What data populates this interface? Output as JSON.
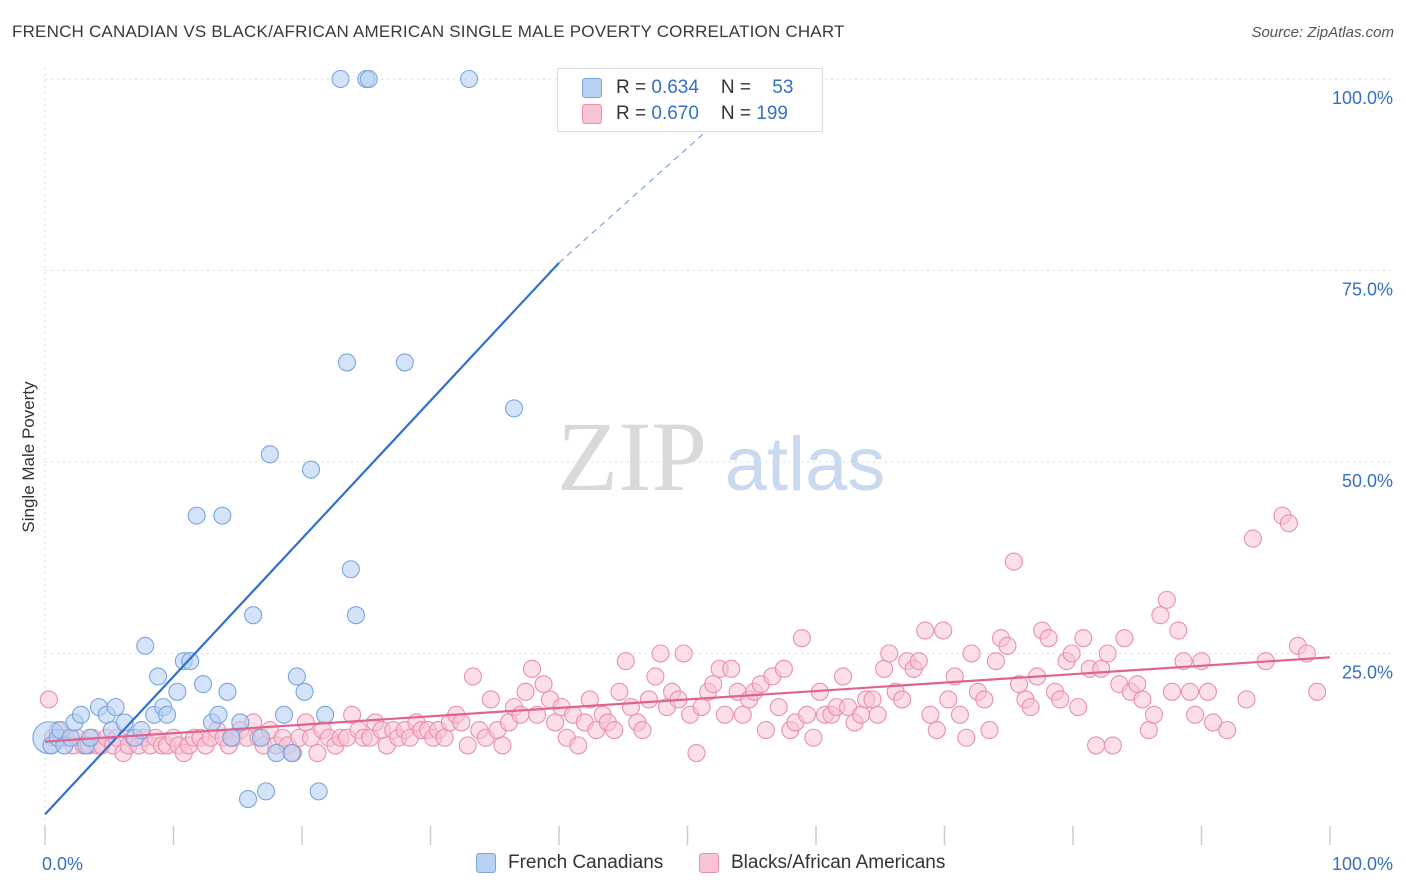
{
  "title": "FRENCH CANADIAN VS BLACK/AFRICAN AMERICAN SINGLE MALE POVERTY CORRELATION CHART",
  "source": "Source: ZipAtlas.com",
  "watermark": {
    "zip": "ZIP",
    "atlas": "atlas"
  },
  "colors": {
    "blue_fill": "#b8d0f2",
    "blue_stroke": "#7aa5de",
    "blue_line": "#2f6fd0",
    "pink_fill": "#f8c3d4",
    "pink_stroke": "#ea8fb0",
    "pink_line": "#e0638f",
    "tick_label": "#3570c4",
    "grid": "#d8d8d8"
  },
  "legend": {
    "rows": [
      {
        "r_label": "R = ",
        "r_value": "0.634",
        "n_label": "N = ",
        "n_value": "53"
      },
      {
        "r_label": "R = ",
        "r_value": "0.670",
        "n_label": "N = ",
        "n_value": "199"
      }
    ]
  },
  "chart_data": {
    "type": "scatter",
    "ylabel": "Single Male Poverty",
    "xlim": [
      0,
      100
    ],
    "ylim": [
      0,
      100
    ],
    "x_tick_labels": [
      "0.0%",
      "100.0%"
    ],
    "y_ticks": [
      25,
      50,
      75,
      100
    ],
    "y_tick_labels": [
      "25.0%",
      "50.0%",
      "75.0%",
      "100.0%"
    ],
    "grid": "horizontal dashed",
    "series": [
      {
        "name": "French Canadians",
        "r": 0.634,
        "n": 53,
        "trend": {
          "x": [
            0,
            40
          ],
          "y": [
            4,
            76
          ]
        },
        "trend_dashed": {
          "x": [
            40,
            56
          ],
          "y": [
            76,
            100
          ]
        },
        "points": [
          [
            0.3,
            14
          ],
          [
            0.5,
            13
          ],
          [
            1.0,
            14
          ],
          [
            1.2,
            15
          ],
          [
            1.5,
            13
          ],
          [
            2.0,
            14
          ],
          [
            2.3,
            16
          ],
          [
            2.8,
            17
          ],
          [
            3.2,
            13
          ],
          [
            3.5,
            14
          ],
          [
            4.2,
            18
          ],
          [
            4.8,
            17
          ],
          [
            5.2,
            15
          ],
          [
            5.5,
            18
          ],
          [
            6.2,
            16
          ],
          [
            7.0,
            14
          ],
          [
            7.5,
            15
          ],
          [
            7.8,
            26
          ],
          [
            8.5,
            17
          ],
          [
            8.8,
            22
          ],
          [
            9.2,
            18
          ],
          [
            9.5,
            17
          ],
          [
            10.3,
            20
          ],
          [
            10.8,
            24
          ],
          [
            11.3,
            24
          ],
          [
            11.8,
            43
          ],
          [
            12.3,
            21
          ],
          [
            13.0,
            16
          ],
          [
            13.5,
            17
          ],
          [
            13.8,
            43
          ],
          [
            14.2,
            20
          ],
          [
            14.5,
            14
          ],
          [
            15.2,
            16
          ],
          [
            15.8,
            6
          ],
          [
            16.2,
            30
          ],
          [
            16.8,
            14
          ],
          [
            17.2,
            7
          ],
          [
            17.5,
            51
          ],
          [
            18.0,
            12
          ],
          [
            18.6,
            17
          ],
          [
            19.2,
            12
          ],
          [
            19.6,
            22
          ],
          [
            20.2,
            20
          ],
          [
            20.7,
            49
          ],
          [
            21.3,
            7
          ],
          [
            21.8,
            17
          ],
          [
            23.0,
            100
          ],
          [
            23.5,
            63
          ],
          [
            23.8,
            36
          ],
          [
            24.2,
            30
          ],
          [
            25.0,
            100
          ],
          [
            25.2,
            100
          ],
          [
            28.0,
            63
          ],
          [
            33.0,
            100
          ],
          [
            36.5,
            57
          ]
        ]
      },
      {
        "name": "Blacks/African Americans",
        "r": 0.67,
        "n": 199,
        "trend": {
          "x": [
            0,
            100
          ],
          "y": [
            13.5,
            24.5
          ]
        },
        "points": [
          [
            0.3,
            19
          ],
          [
            0.6,
            14
          ],
          [
            1.0,
            15
          ],
          [
            1.3,
            14
          ],
          [
            1.6,
            14
          ],
          [
            2.2,
            13
          ],
          [
            2.5,
            14
          ],
          [
            3.0,
            13
          ],
          [
            3.4,
            13
          ],
          [
            3.7,
            14
          ],
          [
            4.1,
            13
          ],
          [
            4.4,
            13
          ],
          [
            4.8,
            14
          ],
          [
            5.3,
            13
          ],
          [
            5.6,
            14
          ],
          [
            6.1,
            12
          ],
          [
            6.5,
            13
          ],
          [
            6.9,
            14
          ],
          [
            7.3,
            13
          ],
          [
            7.7,
            14
          ],
          [
            8.2,
            13
          ],
          [
            8.6,
            14
          ],
          [
            9.1,
            13
          ],
          [
            9.5,
            13
          ],
          [
            10.0,
            14
          ],
          [
            10.4,
            13
          ],
          [
            10.8,
            12
          ],
          [
            11.2,
            13
          ],
          [
            11.6,
            14
          ],
          [
            12.1,
            14
          ],
          [
            12.5,
            13
          ],
          [
            12.9,
            14
          ],
          [
            13.4,
            15
          ],
          [
            13.9,
            14
          ],
          [
            14.3,
            13
          ],
          [
            14.7,
            14
          ],
          [
            15.2,
            15
          ],
          [
            15.7,
            14
          ],
          [
            16.2,
            16
          ],
          [
            16.6,
            14
          ],
          [
            17.0,
            13
          ],
          [
            17.5,
            15
          ],
          [
            18.0,
            13
          ],
          [
            18.5,
            14
          ],
          [
            18.9,
            13
          ],
          [
            19.3,
            12
          ],
          [
            19.8,
            14
          ],
          [
            20.3,
            16
          ],
          [
            20.7,
            14
          ],
          [
            21.2,
            12
          ],
          [
            21.6,
            15
          ],
          [
            22.1,
            14
          ],
          [
            22.6,
            13
          ],
          [
            23.0,
            14
          ],
          [
            23.5,
            14
          ],
          [
            23.9,
            17
          ],
          [
            24.4,
            15
          ],
          [
            24.8,
            14
          ],
          [
            25.3,
            14
          ],
          [
            25.7,
            16
          ],
          [
            26.2,
            15
          ],
          [
            26.6,
            13
          ],
          [
            27.1,
            15
          ],
          [
            27.5,
            14
          ],
          [
            28.0,
            15
          ],
          [
            28.4,
            14
          ],
          [
            28.9,
            16
          ],
          [
            29.3,
            15
          ],
          [
            29.8,
            15
          ],
          [
            30.2,
            14
          ],
          [
            30.6,
            15
          ],
          [
            31.1,
            14
          ],
          [
            31.5,
            16
          ],
          [
            32.0,
            17
          ],
          [
            32.4,
            16
          ],
          [
            32.9,
            13
          ],
          [
            33.3,
            22
          ],
          [
            33.8,
            15
          ],
          [
            34.3,
            14
          ],
          [
            34.7,
            19
          ],
          [
            35.2,
            15
          ],
          [
            35.6,
            13
          ],
          [
            36.1,
            16
          ],
          [
            36.5,
            18
          ],
          [
            37.0,
            17
          ],
          [
            37.4,
            20
          ],
          [
            37.9,
            23
          ],
          [
            38.3,
            17
          ],
          [
            38.8,
            21
          ],
          [
            39.3,
            19
          ],
          [
            39.7,
            16
          ],
          [
            40.2,
            18
          ],
          [
            40.6,
            14
          ],
          [
            41.1,
            17
          ],
          [
            41.5,
            13
          ],
          [
            42.0,
            16
          ],
          [
            42.4,
            19
          ],
          [
            42.9,
            15
          ],
          [
            43.4,
            17
          ],
          [
            43.8,
            16
          ],
          [
            44.3,
            15
          ],
          [
            44.7,
            20
          ],
          [
            45.2,
            24
          ],
          [
            45.6,
            18
          ],
          [
            46.1,
            16
          ],
          [
            46.5,
            15
          ],
          [
            47.0,
            19
          ],
          [
            47.5,
            22
          ],
          [
            47.9,
            25
          ],
          [
            48.4,
            18
          ],
          [
            48.8,
            20
          ],
          [
            49.3,
            19
          ],
          [
            49.7,
            25
          ],
          [
            50.2,
            17
          ],
          [
            50.7,
            12
          ],
          [
            51.1,
            18
          ],
          [
            51.6,
            20
          ],
          [
            52.0,
            21
          ],
          [
            52.5,
            23
          ],
          [
            52.9,
            17
          ],
          [
            53.4,
            23
          ],
          [
            53.9,
            20
          ],
          [
            54.3,
            17
          ],
          [
            54.8,
            19
          ],
          [
            55.2,
            20
          ],
          [
            55.7,
            21
          ],
          [
            56.1,
            15
          ],
          [
            56.6,
            22
          ],
          [
            57.1,
            18
          ],
          [
            57.5,
            23
          ],
          [
            58.0,
            15
          ],
          [
            58.4,
            16
          ],
          [
            58.9,
            27
          ],
          [
            59.3,
            17
          ],
          [
            59.8,
            14
          ],
          [
            60.3,
            20
          ],
          [
            60.7,
            17
          ],
          [
            61.2,
            17
          ],
          [
            61.6,
            18
          ],
          [
            62.1,
            22
          ],
          [
            62.5,
            18
          ],
          [
            63.0,
            16
          ],
          [
            63.5,
            17
          ],
          [
            63.9,
            19
          ],
          [
            64.4,
            19
          ],
          [
            64.8,
            17
          ],
          [
            65.3,
            23
          ],
          [
            65.7,
            25
          ],
          [
            66.2,
            20
          ],
          [
            66.7,
            19
          ],
          [
            67.1,
            24
          ],
          [
            67.6,
            23
          ],
          [
            68.0,
            24
          ],
          [
            68.5,
            28
          ],
          [
            68.9,
            17
          ],
          [
            69.4,
            15
          ],
          [
            69.9,
            28
          ],
          [
            70.3,
            19
          ],
          [
            70.8,
            22
          ],
          [
            71.2,
            17
          ],
          [
            71.7,
            14
          ],
          [
            72.1,
            25
          ],
          [
            72.6,
            20
          ],
          [
            73.1,
            19
          ],
          [
            73.5,
            15
          ],
          [
            74.0,
            24
          ],
          [
            74.4,
            27
          ],
          [
            74.9,
            26
          ],
          [
            75.4,
            37
          ],
          [
            75.8,
            21
          ],
          [
            76.3,
            19
          ],
          [
            76.7,
            18
          ],
          [
            77.2,
            22
          ],
          [
            77.6,
            28
          ],
          [
            78.1,
            27
          ],
          [
            78.6,
            20
          ],
          [
            79.0,
            19
          ],
          [
            79.5,
            24
          ],
          [
            79.9,
            25
          ],
          [
            80.4,
            18
          ],
          [
            80.8,
            27
          ],
          [
            81.3,
            23
          ],
          [
            81.8,
            13
          ],
          [
            82.2,
            23
          ],
          [
            82.7,
            25
          ],
          [
            83.1,
            13
          ],
          [
            83.6,
            21
          ],
          [
            84.0,
            27
          ],
          [
            84.5,
            20
          ],
          [
            85.0,
            21
          ],
          [
            85.4,
            19
          ],
          [
            85.9,
            15
          ],
          [
            86.3,
            17
          ],
          [
            86.8,
            30
          ],
          [
            87.3,
            32
          ],
          [
            87.7,
            20
          ],
          [
            88.2,
            28
          ],
          [
            88.6,
            24
          ],
          [
            89.1,
            20
          ],
          [
            89.5,
            17
          ],
          [
            90.0,
            24
          ],
          [
            90.5,
            20
          ],
          [
            90.9,
            16
          ],
          [
            92.0,
            15
          ],
          [
            93.5,
            19
          ],
          [
            94.0,
            40
          ],
          [
            95.0,
            24
          ],
          [
            96.3,
            43
          ],
          [
            96.8,
            42
          ],
          [
            97.5,
            26
          ],
          [
            98.2,
            25
          ],
          [
            99.0,
            20
          ]
        ]
      }
    ]
  }
}
